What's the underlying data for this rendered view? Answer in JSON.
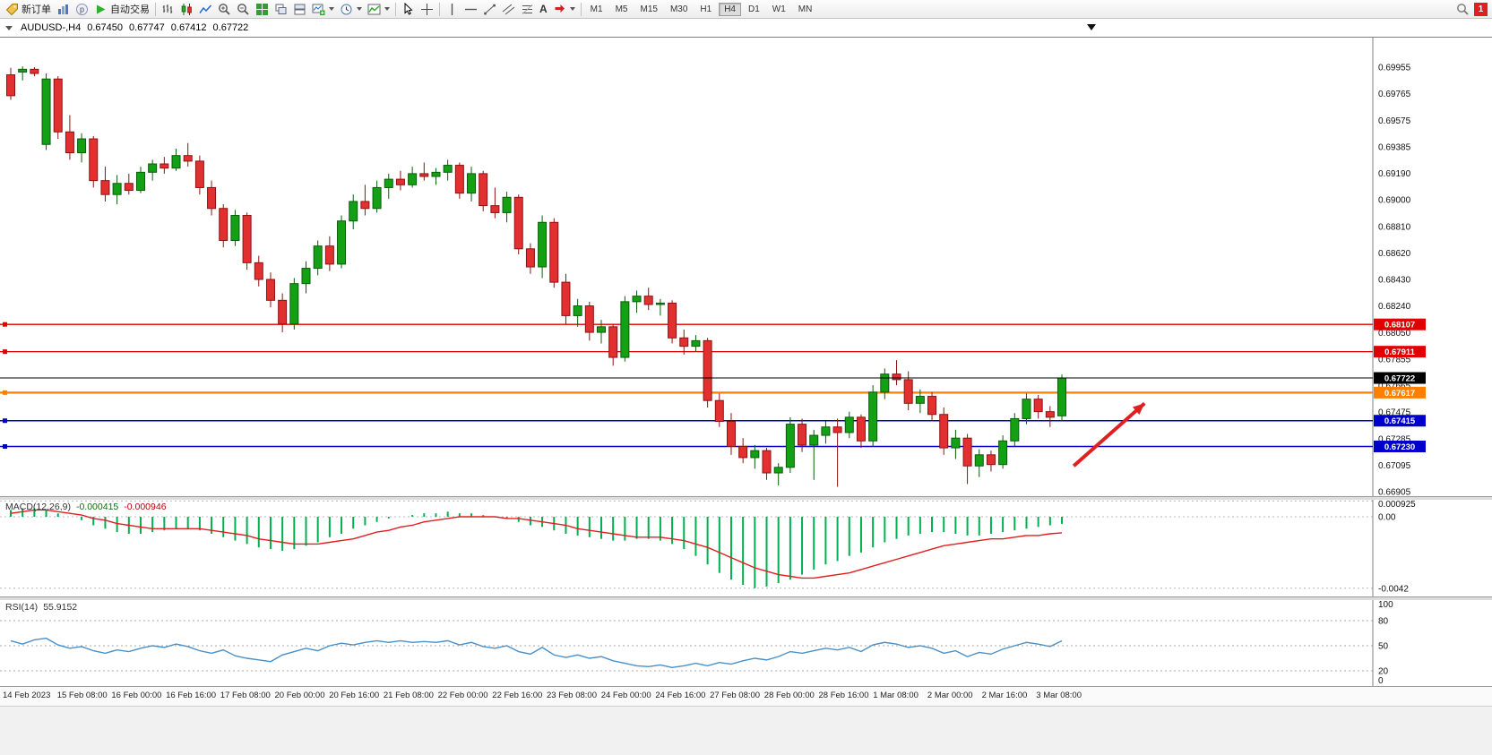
{
  "toolbar": {
    "new_order_label": "新订单",
    "auto_trading_label": "自动交易",
    "text_tool_label": "A",
    "timeframes": [
      "M1",
      "M5",
      "M15",
      "M30",
      "H1",
      "H4",
      "D1",
      "W1",
      "MN"
    ],
    "active_timeframe": "H4",
    "notification_badge": "1"
  },
  "header": {
    "symbol_period": "AUDUSD-,H4",
    "open": "0.67450",
    "high": "0.67747",
    "low": "0.67412",
    "close": "0.67722"
  },
  "chart_data": {
    "type": "candlestick",
    "symbol": "AUDUSD-",
    "period": "H4",
    "colors": {
      "bull": "#14a014",
      "bull_stroke": "#0a5c0a",
      "bear": "#e23030",
      "bear_stroke": "#8c1212",
      "macd_hist": "#00b050",
      "macd_signal": "#e02020",
      "rsi_line": "#4a90c8",
      "arrow": "#e02020",
      "line_red": "#e00000",
      "line_blue": "#0000cc",
      "line_orange": "#ff8000",
      "current_line": "#000000"
    },
    "price_scale": [
      "0.69955",
      "0.69765",
      "0.69575",
      "0.69385",
      "0.69190",
      "0.69000",
      "0.68810",
      "0.68620",
      "0.68430",
      "0.68240",
      "0.68050",
      "0.67855",
      "0.67665",
      "0.67475",
      "0.67285",
      "0.67095",
      "0.66905"
    ],
    "candles": [
      [
        0.699,
        0.6995,
        0.6972,
        0.6975
      ],
      [
        0.6992,
        0.6996,
        0.6986,
        0.6994
      ],
      [
        0.6994,
        0.69955,
        0.6989,
        0.6991
      ],
      [
        0.694,
        0.6991,
        0.6936,
        0.6987
      ],
      [
        0.6987,
        0.6989,
        0.6944,
        0.6949
      ],
      [
        0.6949,
        0.6961,
        0.6929,
        0.6934
      ],
      [
        0.6934,
        0.6948,
        0.6927,
        0.6944
      ],
      [
        0.6944,
        0.6946,
        0.6909,
        0.6914
      ],
      [
        0.6914,
        0.6924,
        0.6899,
        0.6904
      ],
      [
        0.6904,
        0.6918,
        0.6897,
        0.6912
      ],
      [
        0.6912,
        0.6919,
        0.6904,
        0.6907
      ],
      [
        0.6907,
        0.6924,
        0.6905,
        0.692
      ],
      [
        0.692,
        0.6929,
        0.6914,
        0.6926
      ],
      [
        0.6926,
        0.6931,
        0.6919,
        0.6923
      ],
      [
        0.6923,
        0.6937,
        0.6921,
        0.6932
      ],
      [
        0.6932,
        0.6941,
        0.6924,
        0.6928
      ],
      [
        0.6928,
        0.6932,
        0.6904,
        0.6909
      ],
      [
        0.6909,
        0.6914,
        0.6889,
        0.6894
      ],
      [
        0.6894,
        0.6897,
        0.6866,
        0.6871
      ],
      [
        0.6871,
        0.6893,
        0.6867,
        0.6889
      ],
      [
        0.6889,
        0.6891,
        0.685,
        0.6855
      ],
      [
        0.6855,
        0.686,
        0.6838,
        0.6843
      ],
      [
        0.6843,
        0.6848,
        0.6823,
        0.6828
      ],
      [
        0.6828,
        0.6833,
        0.6805,
        0.6811
      ],
      [
        0.6811,
        0.6844,
        0.6807,
        0.684
      ],
      [
        0.684,
        0.6856,
        0.6833,
        0.6851
      ],
      [
        0.6851,
        0.6871,
        0.6846,
        0.6867
      ],
      [
        0.6867,
        0.6874,
        0.6849,
        0.6854
      ],
      [
        0.6854,
        0.6889,
        0.6851,
        0.6885
      ],
      [
        0.6885,
        0.6904,
        0.6879,
        0.6899
      ],
      [
        0.6899,
        0.6911,
        0.6889,
        0.6894
      ],
      [
        0.6894,
        0.6914,
        0.6891,
        0.6909
      ],
      [
        0.6909,
        0.6919,
        0.6901,
        0.6915
      ],
      [
        0.6915,
        0.6921,
        0.6907,
        0.6911
      ],
      [
        0.6911,
        0.6924,
        0.6909,
        0.6919
      ],
      [
        0.6919,
        0.6927,
        0.6914,
        0.6917
      ],
      [
        0.6917,
        0.6923,
        0.6911,
        0.692
      ],
      [
        0.692,
        0.6929,
        0.6914,
        0.6925
      ],
      [
        0.6925,
        0.6927,
        0.6901,
        0.6905
      ],
      [
        0.6905,
        0.6924,
        0.6899,
        0.6919
      ],
      [
        0.6919,
        0.6921,
        0.6892,
        0.6896
      ],
      [
        0.6896,
        0.6909,
        0.6887,
        0.6891
      ],
      [
        0.6891,
        0.6906,
        0.6884,
        0.6902
      ],
      [
        0.6902,
        0.6904,
        0.6861,
        0.6865
      ],
      [
        0.6865,
        0.6869,
        0.6847,
        0.6852
      ],
      [
        0.6852,
        0.6889,
        0.6844,
        0.6884
      ],
      [
        0.6884,
        0.6887,
        0.6837,
        0.6841
      ],
      [
        0.6841,
        0.6847,
        0.6811,
        0.6817
      ],
      [
        0.6817,
        0.6829,
        0.6809,
        0.6824
      ],
      [
        0.6824,
        0.6827,
        0.6799,
        0.6805
      ],
      [
        0.6805,
        0.6814,
        0.6797,
        0.6809
      ],
      [
        0.6809,
        0.6811,
        0.6781,
        0.6787
      ],
      [
        0.6787,
        0.6831,
        0.6784,
        0.6827
      ],
      [
        0.6827,
        0.6835,
        0.6819,
        0.6831
      ],
      [
        0.6831,
        0.6837,
        0.6821,
        0.6825
      ],
      [
        0.6825,
        0.6829,
        0.6817,
        0.6826
      ],
      [
        0.6826,
        0.6828,
        0.6797,
        0.6801
      ],
      [
        0.6801,
        0.6807,
        0.6789,
        0.6795
      ],
      [
        0.6795,
        0.6803,
        0.6791,
        0.6799
      ],
      [
        0.6799,
        0.6801,
        0.6751,
        0.6756
      ],
      [
        0.6756,
        0.6761,
        0.6737,
        0.6741
      ],
      [
        0.6741,
        0.6747,
        0.6717,
        0.6723
      ],
      [
        0.6723,
        0.6729,
        0.6711,
        0.6715
      ],
      [
        0.6715,
        0.6724,
        0.6707,
        0.672
      ],
      [
        0.672,
        0.6722,
        0.6699,
        0.6704
      ],
      [
        0.6704,
        0.6711,
        0.6695,
        0.6708
      ],
      [
        0.6708,
        0.6744,
        0.6704,
        0.6739
      ],
      [
        0.6739,
        0.6743,
        0.6719,
        0.6724
      ],
      [
        0.6724,
        0.6735,
        0.6699,
        0.6731
      ],
      [
        0.6731,
        0.6741,
        0.6725,
        0.6737
      ],
      [
        0.6737,
        0.6743,
        0.6694,
        0.6733
      ],
      [
        0.6733,
        0.6748,
        0.6729,
        0.6744
      ],
      [
        0.6744,
        0.6746,
        0.6722,
        0.6727
      ],
      [
        0.6727,
        0.6767,
        0.6723,
        0.6762
      ],
      [
        0.6762,
        0.6779,
        0.6757,
        0.6775
      ],
      [
        0.6775,
        0.6785,
        0.6767,
        0.6771
      ],
      [
        0.6771,
        0.6777,
        0.6749,
        0.6754
      ],
      [
        0.6754,
        0.6764,
        0.6747,
        0.6759
      ],
      [
        0.6759,
        0.6762,
        0.6741,
        0.6746
      ],
      [
        0.6746,
        0.6751,
        0.6717,
        0.6722
      ],
      [
        0.6722,
        0.6735,
        0.6714,
        0.6729
      ],
      [
        0.6729,
        0.6732,
        0.6696,
        0.6709
      ],
      [
        0.6709,
        0.6721,
        0.6701,
        0.6717
      ],
      [
        0.6717,
        0.672,
        0.6705,
        0.671
      ],
      [
        0.671,
        0.6731,
        0.6707,
        0.6727
      ],
      [
        0.6727,
        0.6747,
        0.6723,
        0.6743
      ],
      [
        0.6743,
        0.6761,
        0.6739,
        0.6757
      ],
      [
        0.6757,
        0.676,
        0.6743,
        0.6748
      ],
      [
        0.6748,
        0.6752,
        0.6737,
        0.6744
      ],
      [
        0.6745,
        0.67747,
        0.67412,
        0.67722
      ]
    ],
    "hlines": [
      {
        "price": 0.68107,
        "label": "0.68107",
        "color": "#e00000",
        "width": 1.3
      },
      {
        "price": 0.67911,
        "label": "0.67911",
        "color": "#e00000",
        "width": 1.3
      },
      {
        "price": 0.67617,
        "label": "0.67617",
        "color": "#ff8000",
        "width": 2.2
      },
      {
        "price": 0.67415,
        "label": "0.67415",
        "color": "#0000cc",
        "width": 1.6
      },
      {
        "price": 0.6723,
        "label": "0.67230",
        "color": "#0000cc",
        "width": 1.6
      }
    ],
    "current_price": {
      "value": 0.67722,
      "label": "0.67722"
    },
    "arrow": {
      "from": {
        "index": 90,
        "price": 0.6709
      },
      "to": {
        "index": 96,
        "price": 0.6754
      }
    },
    "time_labels": [
      "14 Feb 2023",
      "15 Feb 08:00",
      "16 Feb 00:00",
      "16 Feb 16:00",
      "17 Feb 08:00",
      "20 Feb 00:00",
      "20 Feb 16:00",
      "21 Feb 08:00",
      "22 Feb 00:00",
      "22 Feb 16:00",
      "23 Feb 08:00",
      "24 Feb 00:00",
      "24 Feb 16:00",
      "27 Feb 08:00",
      "28 Feb 00:00",
      "28 Feb 16:00",
      "1 Mar 08:00",
      "2 Mar 00:00",
      "2 Mar 16:00",
      "3 Mar 08:00"
    ],
    "macd": {
      "title": "MACD(12,26,9)",
      "value": "-0.000415",
      "signal_value": "-0.000946",
      "scale_labels": [
        "0.000925",
        "0.00",
        "-0.0042"
      ],
      "histogram": [
        0.0004,
        0.0005,
        0.0005,
        0.0004,
        0.0002,
        0.0,
        -0.0002,
        -0.0005,
        -0.0007,
        -0.0009,
        -0.001,
        -0.001,
        -0.0009,
        -0.0008,
        -0.0007,
        -0.0007,
        -0.0008,
        -0.001,
        -0.0012,
        -0.0014,
        -0.0016,
        -0.0018,
        -0.0019,
        -0.002,
        -0.0019,
        -0.0017,
        -0.0015,
        -0.0012,
        -0.001,
        -0.0007,
        -0.0005,
        -0.0003,
        -0.0001,
        0.0,
        0.0001,
        0.0002,
        0.0002,
        0.0003,
        0.0002,
        0.0002,
        0.0001,
        0.0,
        -0.0001,
        -0.0003,
        -0.0005,
        -0.0006,
        -0.0008,
        -0.001,
        -0.0011,
        -0.0012,
        -0.0013,
        -0.0014,
        -0.0014,
        -0.0013,
        -0.0013,
        -0.0014,
        -0.0016,
        -0.0019,
        -0.0023,
        -0.0028,
        -0.0033,
        -0.0037,
        -0.004,
        -0.0042,
        -0.0041,
        -0.0039,
        -0.0037,
        -0.0034,
        -0.0031,
        -0.0028,
        -0.0026,
        -0.0023,
        -0.0021,
        -0.0018,
        -0.0015,
        -0.0013,
        -0.0011,
        -0.001,
        -0.0009,
        -0.0009,
        -0.001,
        -0.0011,
        -0.0011,
        -0.001,
        -0.0009,
        -0.0008,
        -0.0007,
        -0.0006,
        -0.0005,
        -0.000415
      ],
      "signal": [
        0.0002,
        0.0003,
        0.0004,
        0.0004,
        0.0003,
        0.0002,
        0.0001,
        -0.0001,
        -0.0002,
        -0.0004,
        -0.0005,
        -0.0006,
        -0.0007,
        -0.0007,
        -0.0007,
        -0.0007,
        -0.0007,
        -0.0008,
        -0.0009,
        -0.001,
        -0.0011,
        -0.0013,
        -0.0014,
        -0.0015,
        -0.0016,
        -0.0016,
        -0.0016,
        -0.0015,
        -0.0014,
        -0.0013,
        -0.0011,
        -0.0009,
        -0.0008,
        -0.0006,
        -0.0005,
        -0.0003,
        -0.0002,
        -0.0001,
        0.0,
        0.0,
        0.0,
        0.0,
        -0.0001,
        -0.0001,
        -0.0002,
        -0.0003,
        -0.0004,
        -0.0005,
        -0.0007,
        -0.0008,
        -0.0009,
        -0.001,
        -0.0011,
        -0.0012,
        -0.0012,
        -0.0012,
        -0.0013,
        -0.0014,
        -0.0016,
        -0.0018,
        -0.0021,
        -0.0024,
        -0.0027,
        -0.003,
        -0.0032,
        -0.0034,
        -0.0035,
        -0.0036,
        -0.0036,
        -0.0035,
        -0.0034,
        -0.0033,
        -0.0031,
        -0.0029,
        -0.0027,
        -0.0025,
        -0.0023,
        -0.0021,
        -0.0019,
        -0.0017,
        -0.0016,
        -0.0015,
        -0.0014,
        -0.0013,
        -0.0013,
        -0.0012,
        -0.0011,
        -0.0011,
        -0.001,
        -0.000946
      ]
    },
    "rsi": {
      "title": "RSI(14)",
      "value": "55.9152",
      "scale_labels": [
        "100",
        "80",
        "50",
        "20",
        "0"
      ],
      "dashed_levels": [
        80,
        50,
        20
      ],
      "values": [
        56,
        52,
        57,
        59,
        51,
        47,
        49,
        44,
        41,
        45,
        43,
        47,
        50,
        48,
        52,
        49,
        44,
        41,
        45,
        38,
        35,
        33,
        31,
        39,
        43,
        47,
        44,
        50,
        53,
        51,
        54,
        56,
        54,
        56,
        54,
        55,
        54,
        56,
        51,
        54,
        49,
        47,
        50,
        43,
        40,
        48,
        39,
        36,
        39,
        35,
        37,
        32,
        29,
        26,
        25,
        27,
        24,
        26,
        29,
        26,
        30,
        28,
        32,
        35,
        33,
        37,
        43,
        41,
        44,
        47,
        45,
        48,
        43,
        51,
        54,
        52,
        48,
        50,
        47,
        41,
        44,
        37,
        42,
        40,
        46,
        50,
        54,
        52,
        49,
        55.9152
      ]
    }
  }
}
